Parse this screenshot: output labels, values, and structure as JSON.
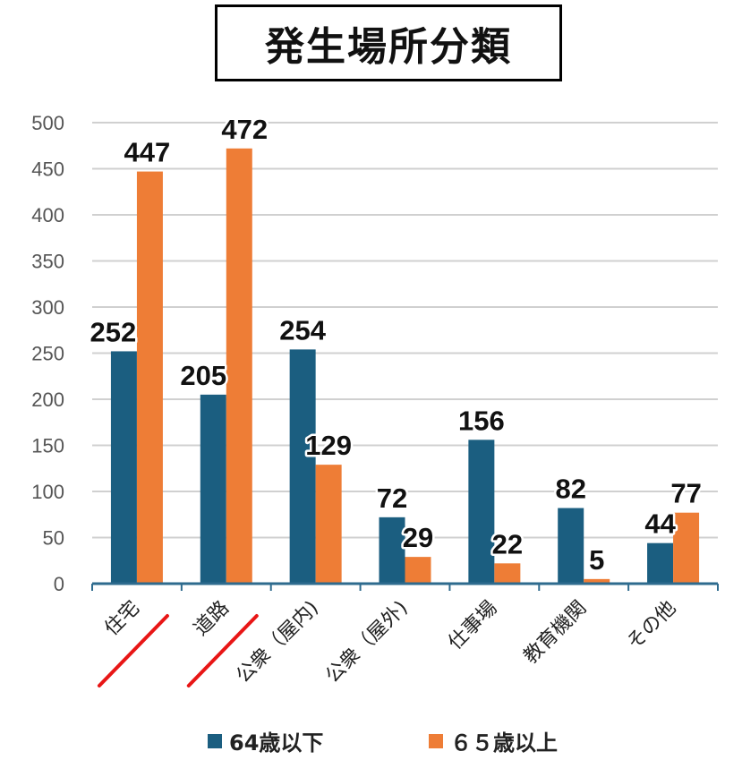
{
  "title": "発生場所分類",
  "colors": {
    "series1": "#1b5e80",
    "series2": "#ee7d36",
    "grid": "#d0d0d0",
    "axis": "#2e6b8e",
    "strike": "#e81616"
  },
  "legend": {
    "series1": "64歳以下",
    "series2": "６５歳以上"
  },
  "chart_data": {
    "type": "bar",
    "title": "発生場所分類",
    "categories": [
      "住宅",
      "道路",
      "公衆（屋内)",
      "公衆（屋外)",
      "仕事場",
      "教育機関",
      "その他"
    ],
    "series": [
      {
        "name": "64歳以下",
        "values": [
          252,
          205,
          254,
          72,
          156,
          82,
          44
        ]
      },
      {
        "name": "６５歳以上",
        "values": [
          447,
          472,
          129,
          29,
          22,
          5,
          77
        ]
      }
    ],
    "ylim": [
      0,
      500
    ],
    "yticks": [
      0,
      50,
      100,
      150,
      200,
      250,
      300,
      350,
      400,
      450,
      500
    ],
    "grid": true,
    "legend_position": "bottom",
    "annotations": [
      "住宅 and 道路 labels underlined by red diagonal strokes"
    ]
  }
}
